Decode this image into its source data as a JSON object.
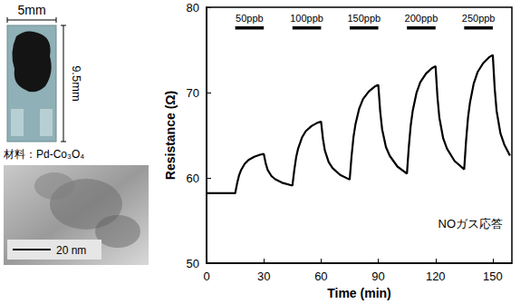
{
  "chart_data": {
    "type": "line",
    "xlabel": "Time (min)",
    "ylabel": "Resistance (Ω)",
    "color": "#000000",
    "x": [
      0,
      5,
      10,
      15,
      16,
      17,
      18,
      20,
      22,
      25,
      28,
      30,
      31,
      32,
      34,
      36,
      40,
      45,
      46,
      47,
      48,
      50,
      52,
      55,
      58,
      60,
      61,
      62,
      64,
      66,
      70,
      75,
      76,
      77,
      78,
      80,
      82,
      85,
      88,
      90,
      91,
      92,
      94,
      96,
      100,
      105,
      106,
      107,
      108,
      110,
      112,
      115,
      118,
      120,
      121,
      122,
      124,
      126,
      130,
      135,
      136,
      137,
      138,
      140,
      142,
      145,
      148,
      150,
      151,
      152,
      154,
      156,
      159
    ],
    "values": [
      58.2,
      58.2,
      58.2,
      58.2,
      59.35,
      60.27,
      60.87,
      61.65,
      62.11,
      62.48,
      62.71,
      62.8,
      61.69,
      60.95,
      60.21,
      59.84,
      59.4,
      59.1,
      60.98,
      62.48,
      63.45,
      64.73,
      65.48,
      66.08,
      66.45,
      66.6,
      64.56,
      63.2,
      61.84,
      61.16,
      60.34,
      59.8,
      62.58,
      64.8,
      66.24,
      68.13,
      69.24,
      70.12,
      70.68,
      70.9,
      67.78,
      65.7,
      63.62,
      62.58,
      61.33,
      60.5,
      63.65,
      66.17,
      67.81,
      69.95,
      71.21,
      72.22,
      72.85,
      73.1,
      69.47,
      67.05,
      64.63,
      63.42,
      61.97,
      61.0,
      64.35,
      67.03,
      68.77,
      71.05,
      72.39,
      73.46,
      74.13,
      74.4,
      70.47,
      67.85,
      65.23,
      63.92,
      62.6
    ],
    "xlim": [
      0,
      160
    ],
    "ylim": [
      50,
      80
    ],
    "xticks": [
      0,
      30,
      60,
      90,
      120,
      150
    ],
    "yticks": [
      50,
      60,
      70,
      80
    ],
    "grid": false,
    "exposures": [
      {
        "label": "50ppb",
        "start": 15,
        "end": 30
      },
      {
        "label": "100ppb",
        "start": 45,
        "end": 60
      },
      {
        "label": "150ppb",
        "start": 75,
        "end": 90
      },
      {
        "label": "200ppb",
        "start": 105,
        "end": 120
      },
      {
        "label": "250ppb",
        "start": 135,
        "end": 150
      }
    ],
    "annotations": [
      "NOガス応答"
    ]
  },
  "photos": {
    "sensor": {
      "width_label": "5mm",
      "height_label": "9.5mm",
      "material_label": "材料：Pd-Co₃O₄"
    },
    "tem": {
      "scale_bar": "20 nm"
    }
  }
}
